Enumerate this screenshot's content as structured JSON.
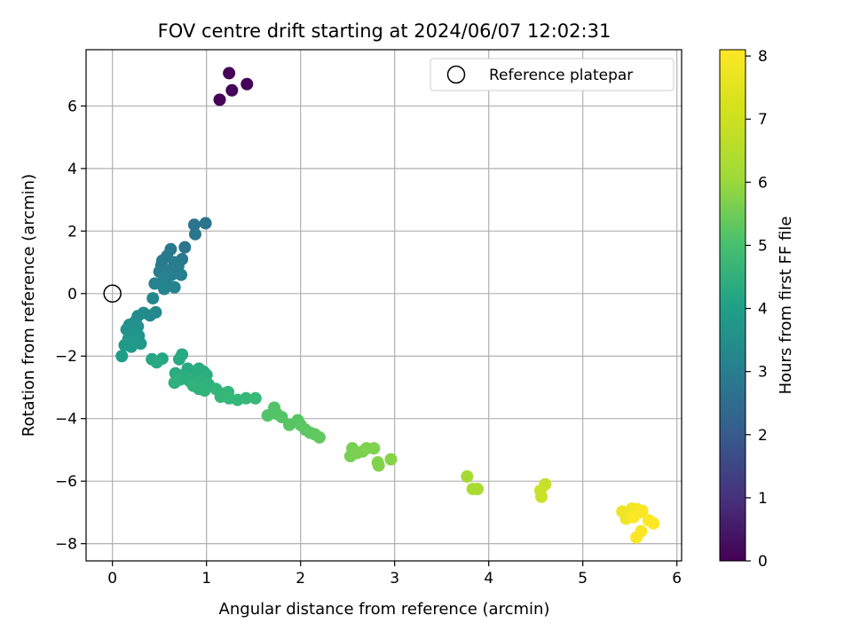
{
  "chart_data": {
    "type": "scatter",
    "title": "FOV centre drift starting at 2024/06/07 12:02:31",
    "xlabel": "Angular distance from reference (arcmin)",
    "ylabel": "Rotation from reference (arcmin)",
    "xlim": [
      -0.28,
      6.05
    ],
    "ylim": [
      -8.55,
      7.8
    ],
    "xticks": [
      0,
      1,
      2,
      3,
      4,
      5,
      6
    ],
    "yticks": [
      -8,
      -6,
      -4,
      -2,
      0,
      2,
      4,
      6
    ],
    "grid": true,
    "legend": {
      "placement": "top-right",
      "entries": [
        "Reference platepar"
      ]
    },
    "reference_point": {
      "x": 0,
      "y": 0
    },
    "colorbar": {
      "label": "Hours from first FF file",
      "range": [
        0,
        8.1
      ],
      "ticks": [
        0,
        1,
        2,
        3,
        4,
        5,
        6,
        7,
        8
      ],
      "colormap": "viridis"
    },
    "series": [
      {
        "points": [
          [
            1.24,
            7.05,
            0.05
          ],
          [
            1.43,
            6.7,
            0.07
          ],
          [
            1.27,
            6.5,
            0.08
          ],
          [
            1.14,
            6.2,
            0.1
          ],
          [
            0.99,
            2.25,
            3.1
          ],
          [
            0.87,
            2.2,
            3.1
          ],
          [
            0.88,
            1.9,
            3.15
          ],
          [
            0.77,
            1.48,
            3.2
          ],
          [
            0.62,
            1.42,
            3.25
          ],
          [
            0.58,
            1.2,
            3.3
          ],
          [
            0.74,
            1.1,
            3.3
          ],
          [
            0.53,
            1.05,
            3.35
          ],
          [
            0.66,
            1.0,
            3.35
          ],
          [
            0.52,
            0.9,
            3.4
          ],
          [
            0.7,
            0.88,
            3.4
          ],
          [
            0.6,
            0.75,
            3.45
          ],
          [
            0.5,
            0.7,
            3.45
          ],
          [
            0.63,
            0.6,
            3.5
          ],
          [
            0.73,
            0.6,
            3.5
          ],
          [
            0.55,
            0.5,
            3.55
          ],
          [
            0.45,
            0.32,
            3.6
          ],
          [
            0.58,
            0.3,
            3.6
          ],
          [
            0.66,
            0.2,
            3.65
          ],
          [
            0.55,
            0.15,
            3.7
          ],
          [
            0.43,
            -0.15,
            3.75
          ],
          [
            0.46,
            -0.6,
            3.8
          ],
          [
            0.4,
            -0.7,
            3.85
          ],
          [
            0.33,
            -0.62,
            3.9
          ],
          [
            0.27,
            -0.72,
            3.95
          ],
          [
            0.24,
            -0.9,
            4.0
          ],
          [
            0.18,
            -1.0,
            4.05
          ],
          [
            0.27,
            -1.05,
            4.05
          ],
          [
            0.15,
            -1.15,
            4.1
          ],
          [
            0.22,
            -1.2,
            4.15
          ],
          [
            0.28,
            -1.35,
            4.2
          ],
          [
            0.17,
            -1.45,
            4.25
          ],
          [
            0.24,
            -1.55,
            4.3
          ],
          [
            0.3,
            -1.6,
            4.3
          ],
          [
            0.13,
            -1.65,
            4.35
          ],
          [
            0.2,
            -1.7,
            4.4
          ],
          [
            0.1,
            -2.0,
            4.45
          ],
          [
            0.42,
            -2.1,
            4.8
          ],
          [
            0.53,
            -2.08,
            4.8
          ],
          [
            0.47,
            -2.2,
            4.85
          ],
          [
            0.74,
            -1.95,
            4.85
          ],
          [
            0.71,
            -2.1,
            4.9
          ],
          [
            0.8,
            -2.4,
            4.9
          ],
          [
            0.67,
            -2.55,
            4.95
          ],
          [
            0.76,
            -2.6,
            4.95
          ],
          [
            0.92,
            -2.4,
            5.0
          ],
          [
            0.97,
            -2.5,
            5.0
          ],
          [
            1.0,
            -2.6,
            5.05
          ],
          [
            0.89,
            -2.65,
            5.05
          ],
          [
            0.72,
            -2.75,
            5.1
          ],
          [
            0.82,
            -2.8,
            5.1
          ],
          [
            0.66,
            -2.85,
            5.15
          ],
          [
            0.94,
            -2.8,
            5.15
          ],
          [
            0.86,
            -2.95,
            5.2
          ],
          [
            1.02,
            -2.9,
            5.2
          ],
          [
            0.92,
            -3.05,
            5.25
          ],
          [
            0.98,
            -3.1,
            5.25
          ],
          [
            1.1,
            -3.05,
            5.3
          ],
          [
            1.18,
            -3.2,
            5.3
          ],
          [
            1.23,
            -3.15,
            5.35
          ],
          [
            1.15,
            -3.3,
            5.35
          ],
          [
            1.24,
            -3.35,
            5.4
          ],
          [
            1.33,
            -3.4,
            5.4
          ],
          [
            1.42,
            -3.35,
            5.45
          ],
          [
            1.52,
            -3.35,
            5.45
          ],
          [
            1.72,
            -3.65,
            5.85
          ],
          [
            1.65,
            -3.9,
            5.85
          ],
          [
            1.75,
            -3.85,
            5.9
          ],
          [
            1.8,
            -3.95,
            5.9
          ],
          [
            1.88,
            -4.2,
            5.95
          ],
          [
            1.97,
            -4.05,
            5.95
          ],
          [
            2.0,
            -4.2,
            6.0
          ],
          [
            2.05,
            -4.35,
            6.0
          ],
          [
            2.1,
            -4.45,
            6.05
          ],
          [
            2.15,
            -4.5,
            6.05
          ],
          [
            2.2,
            -4.6,
            6.1
          ],
          [
            2.55,
            -4.95,
            6.4
          ],
          [
            2.53,
            -5.2,
            6.4
          ],
          [
            2.6,
            -5.1,
            6.45
          ],
          [
            2.66,
            -5.05,
            6.45
          ],
          [
            2.7,
            -4.95,
            6.5
          ],
          [
            2.78,
            -4.95,
            6.5
          ],
          [
            2.82,
            -5.4,
            6.55
          ],
          [
            2.83,
            -5.5,
            6.55
          ],
          [
            2.96,
            -5.3,
            6.6
          ],
          [
            3.77,
            -5.85,
            7.0
          ],
          [
            3.83,
            -6.25,
            7.05
          ],
          [
            3.88,
            -6.25,
            7.05
          ],
          [
            4.6,
            -6.1,
            7.4
          ],
          [
            4.55,
            -6.3,
            7.45
          ],
          [
            4.56,
            -6.5,
            7.45
          ],
          [
            5.42,
            -6.97,
            7.9
          ],
          [
            5.46,
            -7.2,
            7.9
          ],
          [
            5.52,
            -6.88,
            7.95
          ],
          [
            5.55,
            -7.05,
            7.95
          ],
          [
            5.58,
            -6.9,
            8.0
          ],
          [
            5.6,
            -7.0,
            8.0
          ],
          [
            5.63,
            -6.95,
            8.05
          ],
          [
            5.62,
            -7.6,
            8.05
          ],
          [
            5.57,
            -7.8,
            8.05
          ],
          [
            5.7,
            -7.25,
            8.08
          ],
          [
            5.75,
            -7.35,
            8.1
          ],
          [
            5.54,
            -7.15,
            8.1
          ]
        ]
      }
    ]
  }
}
